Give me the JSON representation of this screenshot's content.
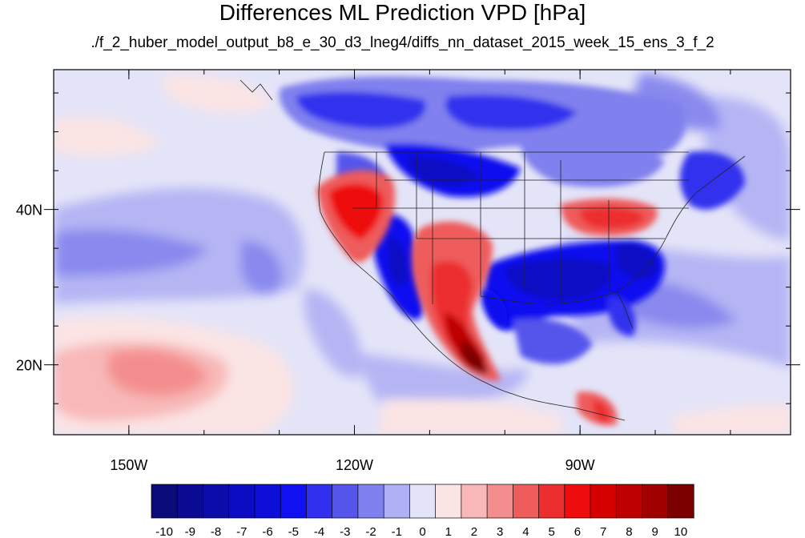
{
  "title": "Differences ML Prediction VPD [hPa]",
  "subtitle": "./f_2_huber_model_output_b8_e_30_d3_lneg4/diffs_nn_dataset_2015_week_15_ens_3_f_2",
  "map": {
    "lon_range": [
      -160,
      -62
    ],
    "lat_range": [
      11,
      58
    ],
    "x_ticks": [
      {
        "value": -150,
        "label": "150W"
      },
      {
        "value": -120,
        "label": "120W"
      },
      {
        "value": -90,
        "label": "90W"
      }
    ],
    "y_ticks": [
      {
        "value": 40,
        "label": "40N"
      },
      {
        "value": 20,
        "label": "20N"
      }
    ]
  },
  "colorbar": {
    "labels": [
      "-10",
      "-9",
      "-8",
      "-7",
      "-6",
      "-5",
      "-4",
      "-3",
      "-2",
      "-1",
      "0",
      "1",
      "2",
      "3",
      "4",
      "5",
      "6",
      "7",
      "8",
      "9",
      "10"
    ],
    "colors": [
      "#0a0a78",
      "#0a0a92",
      "#0c0caa",
      "#0c0cc3",
      "#0e0ed9",
      "#1010f0",
      "#3030ee",
      "#5555ec",
      "#8080ee",
      "#b0b0f4",
      "#e4e4f8",
      "#fbe4e4",
      "#f8b8b8",
      "#f48e8e",
      "#ee5c5c",
      "#ec2e2e",
      "#ee0c0c",
      "#d60000",
      "#bf0000",
      "#a00000",
      "#7c0000"
    ]
  }
}
